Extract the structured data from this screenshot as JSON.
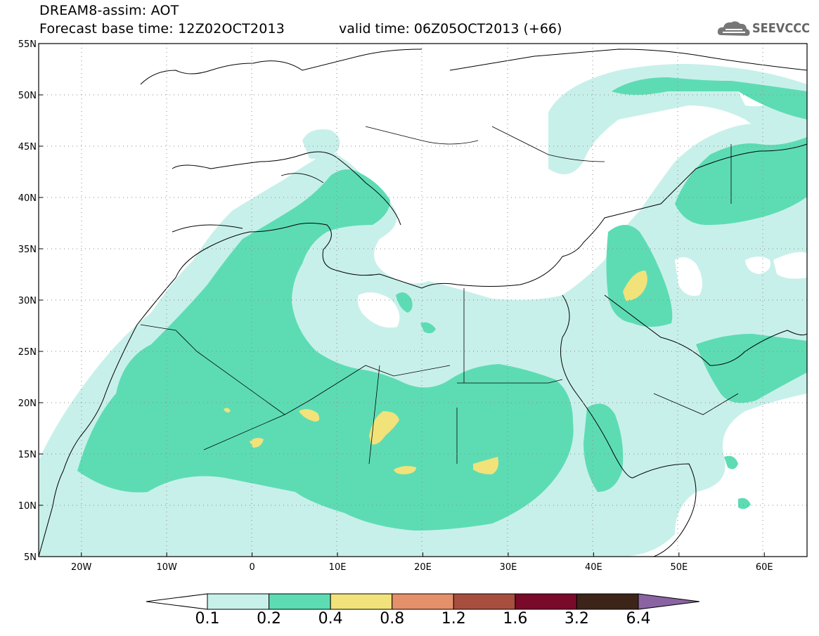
{
  "header": {
    "title_line1": "DREAM8-assim: AOT",
    "title_line2": "Forecast base time: 12Z02OCT2013",
    "valid_time": "valid time: 06Z05OCT2013 (+66)",
    "logo_text": "SEEVCCC"
  },
  "map": {
    "lon_labels": [
      "20W",
      "10W",
      "0",
      "10E",
      "20E",
      "30E",
      "40E",
      "50E",
      "60E"
    ],
    "lat_labels": [
      "55N",
      "50N",
      "45N",
      "40N",
      "35N",
      "30N",
      "25N",
      "20N",
      "15N",
      "10N",
      "5N"
    ],
    "lon_range": [
      -25,
      65
    ],
    "lat_range": [
      5,
      55
    ],
    "grid": "dotted"
  },
  "colorbar": {
    "labels": [
      "0.1",
      "0.2",
      "0.4",
      "0.8",
      "1.2",
      "1.6",
      "3.2",
      "6.4"
    ],
    "colors": [
      "#ffffff",
      "#c8f0ea",
      "#5ddcb4",
      "#f2e27a",
      "#e4906a",
      "#a84e3e",
      "#7a0a2a",
      "#3c2418",
      "#8a64a2"
    ]
  }
}
